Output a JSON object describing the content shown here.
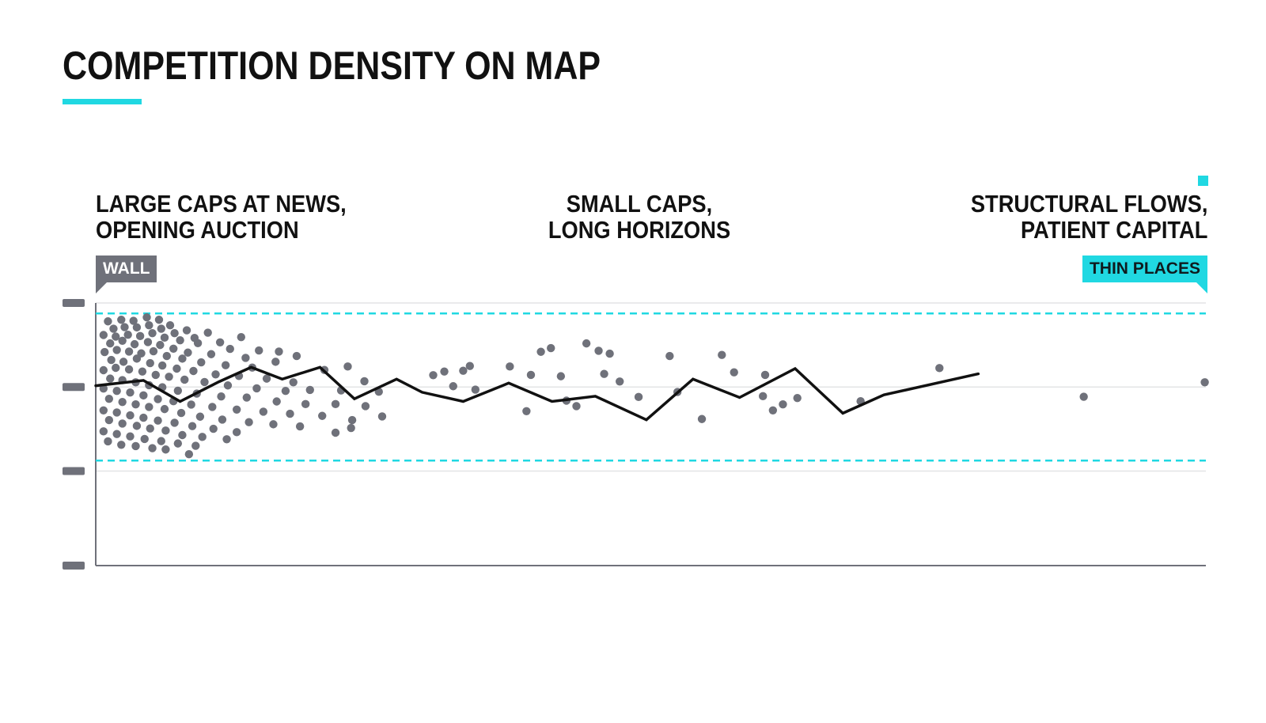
{
  "title": "COMPETITION DENSITY ON MAP",
  "colors": {
    "accent": "#20d8e2",
    "dots": "#6f717a",
    "line": "#111111",
    "axis": "#6f717a",
    "gridline": "#e3e4e6"
  },
  "zones": {
    "left": "LARGE CAPS AT NEWS,\nOPENING AUCTION",
    "middle": "SMALL CAPS,\nLONG HORIZONS",
    "right": "STRUCTURAL FLOWS,\nPATIENT CAPITAL"
  },
  "tags": {
    "wall": "WALL",
    "thin": "THIN PLACES"
  },
  "chart_data": {
    "type": "scatter",
    "title": "COMPETITION DENSITY ON MAP",
    "xlabel": "",
    "ylabel": "",
    "xlim": [
      0,
      100
    ],
    "ylim": [
      0,
      100
    ],
    "y_ticks": [
      0,
      36,
      68,
      100
    ],
    "grid": true,
    "band_lines": [
      40,
      96
    ],
    "series": [
      {
        "type": "line",
        "points": [
          [
            0,
            68.5
          ],
          [
            4.3,
            70.5
          ],
          [
            7.6,
            62.5
          ],
          [
            11.1,
            70
          ],
          [
            14,
            75.5
          ],
          [
            16.8,
            71
          ],
          [
            20.2,
            75.5
          ],
          [
            23.3,
            63.5
          ],
          [
            27.1,
            71
          ],
          [
            29.4,
            66
          ],
          [
            33.1,
            62.5
          ],
          [
            37.2,
            69.5
          ],
          [
            41.1,
            62.5
          ],
          [
            45,
            64.5
          ],
          [
            49.6,
            55.5
          ],
          [
            53.8,
            71
          ],
          [
            58,
            64
          ],
          [
            63,
            75
          ],
          [
            67.3,
            58
          ],
          [
            71,
            65
          ],
          [
            79.5,
            73
          ]
        ]
      },
      {
        "type": "scatter",
        "points": [
          [
            1.1,
            93
          ],
          [
            2.3,
            93.6
          ],
          [
            3.4,
            93.2
          ],
          [
            4.6,
            94.5
          ],
          [
            5.7,
            93.6
          ],
          [
            6.7,
            91.5
          ],
          [
            8.2,
            89.6
          ],
          [
            10.1,
            88.7
          ],
          [
            13.1,
            87
          ],
          [
            1.6,
            90.2
          ],
          [
            2.6,
            90.8
          ],
          [
            3.7,
            90.7
          ],
          [
            4.8,
            91.5
          ],
          [
            5.9,
            90.2
          ],
          [
            7.1,
            88.5
          ],
          [
            8.9,
            86.7
          ],
          [
            11.2,
            85
          ],
          [
            14.7,
            81.9
          ],
          [
            16.5,
            81.5
          ],
          [
            0.7,
            87.8
          ],
          [
            1.8,
            87.2
          ],
          [
            2.9,
            87.9
          ],
          [
            4,
            87.4
          ],
          [
            5.1,
            88.5
          ],
          [
            6.2,
            86.8
          ],
          [
            7.6,
            85.8
          ],
          [
            9.2,
            84.7
          ],
          [
            12.1,
            82.5
          ],
          [
            18.1,
            79.8
          ],
          [
            1.3,
            84.6
          ],
          [
            2.4,
            85.6
          ],
          [
            3.5,
            84.3
          ],
          [
            4.7,
            85.1
          ],
          [
            5.8,
            84
          ],
          [
            7,
            82.6
          ],
          [
            8.3,
            81.1
          ],
          [
            10.4,
            80.5
          ],
          [
            13.5,
            79.1
          ],
          [
            16.2,
            77.6
          ],
          [
            22.7,
            75.8
          ],
          [
            0.8,
            81.3
          ],
          [
            1.9,
            82.1
          ],
          [
            3,
            81.5
          ],
          [
            4.1,
            80.8
          ],
          [
            5.2,
            81.6
          ],
          [
            6.4,
            79.8
          ],
          [
            7.8,
            78.8
          ],
          [
            9.5,
            77.4
          ],
          [
            11.7,
            76.3
          ],
          [
            14.1,
            75.4
          ],
          [
            20.6,
            74.5
          ],
          [
            30.4,
            72.5
          ],
          [
            33.1,
            74.2
          ],
          [
            1.4,
            78.3
          ],
          [
            2.5,
            77.6
          ],
          [
            3.7,
            78.8
          ],
          [
            4.9,
            77.1
          ],
          [
            6,
            76.2
          ],
          [
            7.3,
            75
          ],
          [
            8.8,
            74.1
          ],
          [
            10.8,
            72.8
          ],
          [
            12.9,
            72.2
          ],
          [
            15.4,
            71.2
          ],
          [
            17.8,
            69.8
          ],
          [
            24.2,
            70.2
          ],
          [
            34.2,
            67
          ],
          [
            0.7,
            74.4
          ],
          [
            1.8,
            75.3
          ],
          [
            3,
            74.7
          ],
          [
            4.2,
            73.9
          ],
          [
            5.4,
            72.6
          ],
          [
            6.6,
            71.9
          ],
          [
            8,
            70.8
          ],
          [
            9.8,
            69.9
          ],
          [
            11.9,
            68.6
          ],
          [
            14.5,
            67.5
          ],
          [
            17.1,
            66.5
          ],
          [
            19.3,
            66.9
          ],
          [
            22.1,
            66.7
          ],
          [
            25.5,
            66.2
          ],
          [
            1.3,
            71.2
          ],
          [
            2.4,
            70.6
          ],
          [
            3.6,
            69.8
          ],
          [
            4.8,
            68.7
          ],
          [
            6,
            67.9
          ],
          [
            7.4,
            66.6
          ],
          [
            9.1,
            65.5
          ],
          [
            11.3,
            64.4
          ],
          [
            13.6,
            64
          ],
          [
            16.3,
            62.5
          ],
          [
            18.9,
            61.5
          ],
          [
            21.6,
            61.5
          ],
          [
            24.3,
            60.7
          ],
          [
            25.8,
            56.8
          ],
          [
            0.7,
            67.4
          ],
          [
            1.9,
            66.5
          ],
          [
            3.1,
            65.9
          ],
          [
            4.3,
            64.8
          ],
          [
            5.6,
            63.4
          ],
          [
            7,
            62.6
          ],
          [
            8.6,
            61.3
          ],
          [
            10.5,
            60.4
          ],
          [
            12.7,
            59.4
          ],
          [
            15.1,
            58.6
          ],
          [
            17.5,
            57.8
          ],
          [
            20.4,
            57
          ],
          [
            23.1,
            55.4
          ],
          [
            1.2,
            63.5
          ],
          [
            2.4,
            62.3
          ],
          [
            3.6,
            61.4
          ],
          [
            4.8,
            60.4
          ],
          [
            6.2,
            59.6
          ],
          [
            7.7,
            58.1
          ],
          [
            9.4,
            56.7
          ],
          [
            11.4,
            55.6
          ],
          [
            13.8,
            54.6
          ],
          [
            16,
            53.8
          ],
          [
            18.4,
            53
          ],
          [
            21.6,
            50.6
          ],
          [
            23,
            52.4
          ],
          [
            0.7,
            59.1
          ],
          [
            1.9,
            58.3
          ],
          [
            3.1,
            57.2
          ],
          [
            4.3,
            56.3
          ],
          [
            5.6,
            55.2
          ],
          [
            7.1,
            54.4
          ],
          [
            8.7,
            53.1
          ],
          [
            10.6,
            52.1
          ],
          [
            12.7,
            50.8
          ],
          [
            1.2,
            55.4
          ],
          [
            2.4,
            54.1
          ],
          [
            3.7,
            53.2
          ],
          [
            4.9,
            52.2
          ],
          [
            6.3,
            51.4
          ],
          [
            7.8,
            49.7
          ],
          [
            9.6,
            49
          ],
          [
            11.8,
            48.1
          ],
          [
            0.7,
            51.1
          ],
          [
            1.9,
            50.1
          ],
          [
            3.1,
            49.2
          ],
          [
            4.4,
            48.2
          ],
          [
            5.9,
            47.4
          ],
          [
            7.4,
            46.5
          ],
          [
            9,
            45.6
          ],
          [
            1.1,
            47.3
          ],
          [
            2.3,
            46
          ],
          [
            3.6,
            45.5
          ],
          [
            5.1,
            44.7
          ],
          [
            6.3,
            44.2
          ],
          [
            8.4,
            42.4
          ],
          [
            31.4,
            73.9
          ],
          [
            32.2,
            68.3
          ],
          [
            33.7,
            76
          ],
          [
            37.3,
            75.8
          ],
          [
            39.2,
            72.6
          ],
          [
            40.1,
            81.4
          ],
          [
            41.9,
            72.1
          ],
          [
            42.4,
            62.8
          ],
          [
            44.2,
            84.6
          ],
          [
            38.8,
            58.8
          ],
          [
            41,
            82.8
          ],
          [
            43.3,
            60.7
          ],
          [
            45.3,
            81.8
          ],
          [
            45.8,
            73
          ],
          [
            46.3,
            80.7
          ],
          [
            47.2,
            70.1
          ],
          [
            48.9,
            64.2
          ],
          [
            51.7,
            79.8
          ],
          [
            52.4,
            66.1
          ],
          [
            54.6,
            55.8
          ],
          [
            56.4,
            80.2
          ],
          [
            57.5,
            73.6
          ],
          [
            60.3,
            72.6
          ],
          [
            61,
            59.1
          ],
          [
            61.9,
            61.4
          ],
          [
            63.2,
            63.8
          ],
          [
            68.9,
            62.6
          ],
          [
            76,
            75.2
          ],
          [
            60.1,
            64.5
          ],
          [
            89,
            64.3
          ],
          [
            99.9,
            69.8
          ]
        ]
      }
    ]
  }
}
